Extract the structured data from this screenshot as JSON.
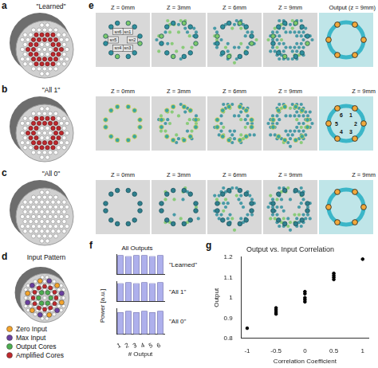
{
  "panels": {
    "a": {
      "letter": "a",
      "label": "\"Learned\""
    },
    "b": {
      "letter": "b",
      "label": "\"All 1\""
    },
    "c": {
      "letter": "c",
      "label": "\"All 0\""
    },
    "d": {
      "letter": "d",
      "title": "Input Pattern",
      "legend": [
        {
          "label": "Zero Input",
          "color": "#f4a42c"
        },
        {
          "label": "Max Input",
          "color": "#6a3fa0"
        },
        {
          "label": "Output Cores",
          "color": "#4caf50"
        },
        {
          "label": "Amplified Cores",
          "color": "#c0282d"
        }
      ]
    },
    "e": {
      "letter": "e",
      "rows": [
        {
          "headers": [
            "Z = 0mm",
            "Z = 3mm",
            "Z = 6mm",
            "Z = 9mm",
            "Output (z = 9mm)"
          ],
          "input_labels": [
            "sn1",
            "sn2",
            "sn3",
            "sn4",
            "sn5",
            "sn6"
          ]
        },
        {
          "headers": [
            "Z = 0mm",
            "Z = 3mm",
            "Z = 6mm",
            "Z = 9mm",
            "Z = 9mm"
          ],
          "output_labels": [
            "1",
            "2",
            "3",
            "4",
            "5",
            "6"
          ]
        },
        {
          "headers": [
            "Z = 0mm",
            "Z = 3mm",
            "Z = 6mm",
            "Z = 9mm",
            "Z = 9mm"
          ]
        }
      ]
    },
    "f": {
      "letter": "f",
      "title": "All Outputs",
      "y_label": "Power [a.u.]"
    },
    "g": {
      "letter": "g"
    }
  },
  "chart_data": [
    {
      "type": "bar",
      "title": "\"Learned\"",
      "categories": [
        "1",
        "2",
        "3",
        "4",
        "5",
        "6"
      ],
      "values": [
        0.95,
        0.9,
        0.95,
        0.95,
        0.9,
        0.95
      ],
      "color": "#aeb0ec",
      "ylim": [
        0,
        1
      ],
      "grid": false,
      "tick_labels": false
    },
    {
      "type": "bar",
      "title": "\"All 1\"",
      "categories": [
        "1",
        "2",
        "3",
        "4",
        "5",
        "6"
      ],
      "values": [
        0.9,
        0.95,
        0.9,
        0.95,
        0.9,
        0.95
      ],
      "color": "#aeb0ec",
      "ylim": [
        0,
        1
      ],
      "grid": false,
      "tick_labels": false
    },
    {
      "type": "bar",
      "title": "\"All 0\"",
      "x_label": "# Output",
      "categories": [
        "1",
        "2",
        "3",
        "4",
        "5",
        "6"
      ],
      "values": [
        0.85,
        0.9,
        0.85,
        0.9,
        0.85,
        0.9
      ],
      "color": "#aeb0ec",
      "ylim": [
        0,
        1
      ],
      "grid": false,
      "tick_labels": "x"
    },
    {
      "type": "scatter",
      "title": "Output vs. Input Correlation",
      "x_label": "Correlation Coefficient",
      "y_label": "Output",
      "x": [
        -1,
        -0.5,
        -0.5,
        -0.5,
        -0.5,
        0,
        0,
        0,
        0,
        0,
        0.5,
        0.5,
        0.5,
        0.5,
        1
      ],
      "values": [
        0.85,
        0.93,
        0.95,
        0.94,
        0.92,
        0.99,
        1.0,
        1.02,
        1.03,
        0.98,
        1.09,
        1.1,
        1.12,
        1.11,
        1.19
      ],
      "color": "#000000",
      "marker": "circle",
      "xlim": [
        -1.1,
        1.1
      ],
      "xticks": [
        -1,
        -0.5,
        0,
        0.5,
        1
      ],
      "ylim": [
        0.8,
        1.2
      ],
      "yticks": [
        0.8,
        0.9,
        1,
        1.1,
        1.2
      ],
      "grid": false
    }
  ]
}
